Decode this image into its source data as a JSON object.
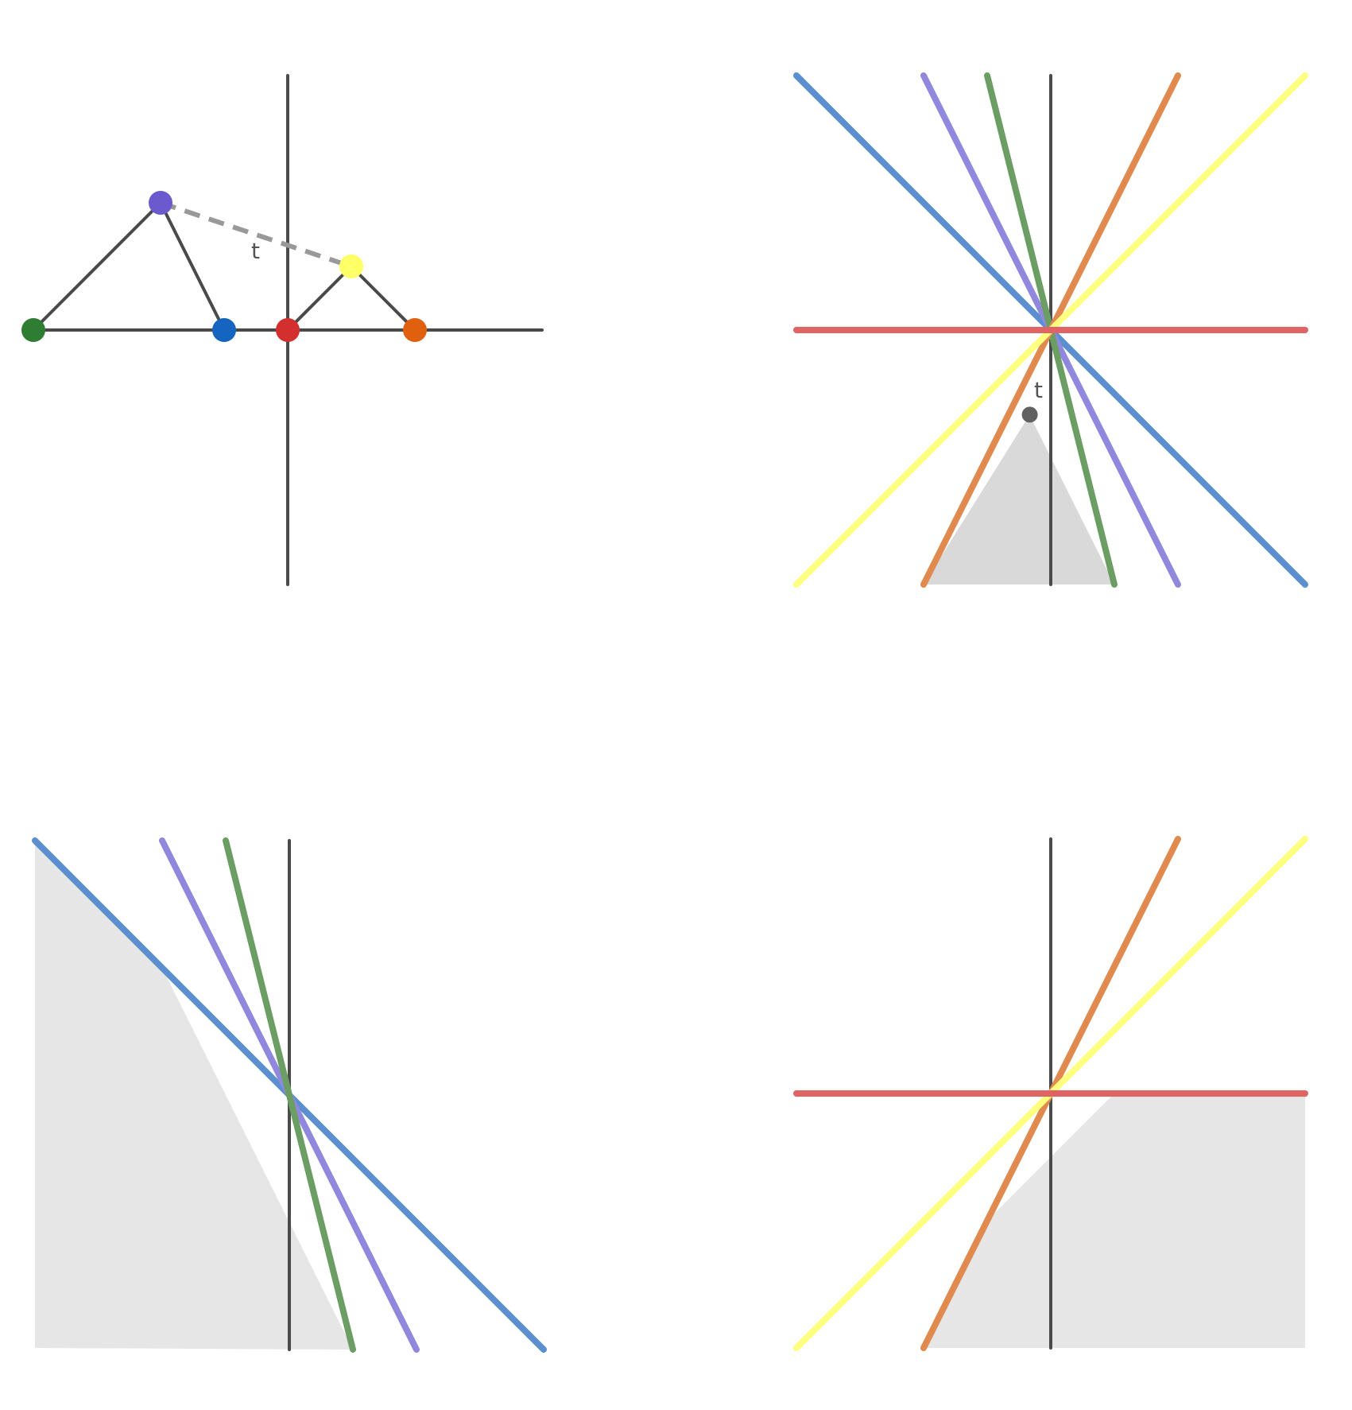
{
  "colors": {
    "axis": "#4a4a4a",
    "dash": "#999999",
    "shade_top": "#d9d9d9",
    "shade_bottom": "#e6e6e6",
    "point_t": "#616161",
    "purple": "#6a5acd",
    "green": "#2e7d32",
    "blue": "#1565c0",
    "red": "#d32f2f",
    "yellow": "#ffff66",
    "orange": "#e06010",
    "line_blue": "#5b8fd0",
    "line_purple": "#9088dd",
    "line_green": "#6a9e62",
    "line_orange": "#e08a50",
    "line_red": "#e06464",
    "line_yellow": "#ffff80"
  },
  "labels": {
    "panel1_t": "t",
    "panel2_t": "t"
  },
  "panel1": {
    "points": [
      {
        "name": "green-point",
        "color": "green",
        "x": -4,
        "y": 0
      },
      {
        "name": "purple-point",
        "color": "purple",
        "x": -2,
        "y": 2
      },
      {
        "name": "blue-point",
        "color": "blue",
        "x": -1,
        "y": 0
      },
      {
        "name": "red-point",
        "color": "red",
        "x": 0,
        "y": 0
      },
      {
        "name": "yellow-point",
        "color": "yellow",
        "x": 1,
        "y": 1
      },
      {
        "name": "orange-point",
        "color": "orange",
        "x": 2,
        "y": 0
      }
    ]
  },
  "panel2": {
    "lines": [
      {
        "name": "blue-line",
        "color": "line_blue",
        "slope": -1
      },
      {
        "name": "purple-line",
        "color": "line_purple",
        "slope": -2
      },
      {
        "name": "green-line",
        "color": "line_green",
        "slope": -4
      },
      {
        "name": "orange-line",
        "color": "line_orange",
        "slope": 2
      },
      {
        "name": "yellow-line",
        "color": "line_yellow",
        "slope": 1
      },
      {
        "name": "red-line",
        "color": "line_red",
        "slope": 0
      }
    ],
    "point_t": {
      "x": -0.33,
      "y": -1.33
    }
  },
  "panel3": {
    "lines": [
      {
        "name": "blue-line",
        "color": "line_blue",
        "slope": -1
      },
      {
        "name": "purple-line",
        "color": "line_purple",
        "slope": -2
      },
      {
        "name": "green-line",
        "color": "line_green",
        "slope": -4
      }
    ]
  },
  "panel4": {
    "lines": [
      {
        "name": "orange-line",
        "color": "line_orange",
        "slope": 2
      },
      {
        "name": "yellow-line",
        "color": "line_yellow",
        "slope": 1
      },
      {
        "name": "red-line",
        "color": "line_red",
        "slope": 0
      }
    ]
  }
}
